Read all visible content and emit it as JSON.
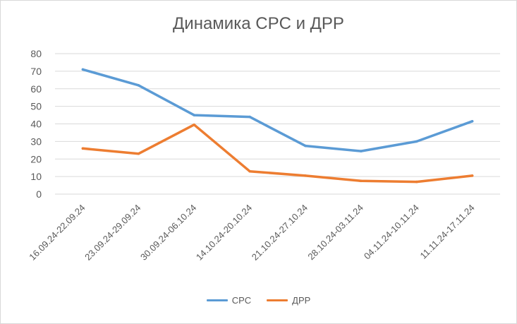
{
  "chart_data": {
    "type": "line",
    "title": "Динамика CPC и ДРР",
    "categories": [
      "16.09.24-22.09.24",
      "23.09.24-29.09.24",
      "30.09.24-06.10.24",
      "14.10.24-20.10.24",
      "21.10.24-27.10.24",
      "28.10.24-03.11.24",
      "04.11.24-10.11.24",
      "11.11.24-17.11.24"
    ],
    "series": [
      {
        "name": "CPC",
        "color": "#5b9bd5",
        "values": [
          71,
          62,
          45,
          44,
          27.5,
          24.5,
          30,
          41.5
        ]
      },
      {
        "name": "ДРР",
        "color": "#ed7d31",
        "values": [
          26,
          23,
          39.5,
          13,
          10.5,
          7.5,
          7,
          10.5
        ]
      }
    ],
    "ylim": [
      0,
      80
    ],
    "yticks": [
      "0",
      "10",
      "20",
      "30",
      "40",
      "50",
      "60",
      "70",
      "80"
    ],
    "grid": true,
    "legend": "bottom"
  }
}
